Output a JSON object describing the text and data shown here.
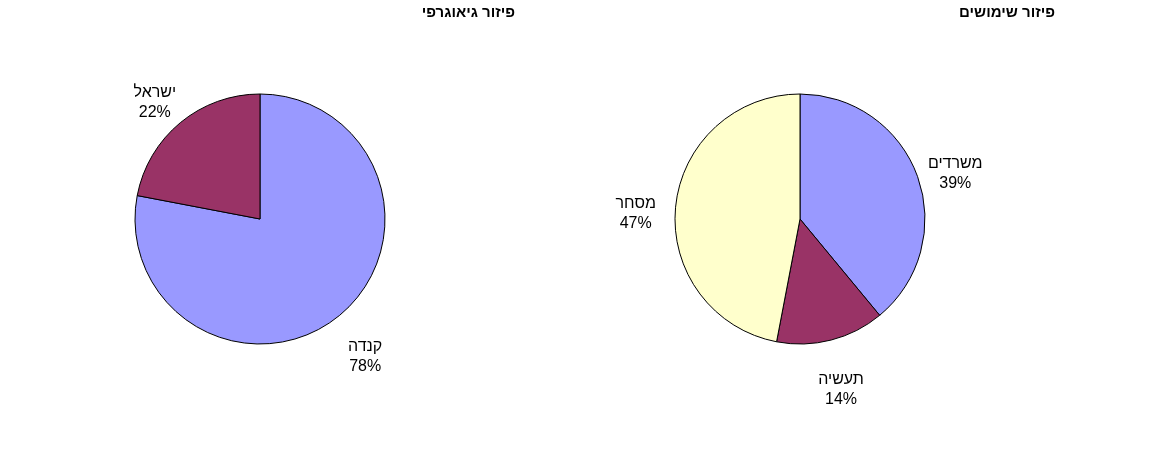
{
  "chart_data": [
    {
      "type": "pie",
      "title": "פיזור שימושים",
      "categories": [
        "משרדים",
        "תעשיה",
        "מסחר"
      ],
      "values": [
        39,
        14,
        47
      ],
      "colors": [
        "#9999ff",
        "#993366",
        "#ffffcc"
      ],
      "value_labels": [
        "39%",
        "14%",
        "47%"
      ],
      "legend": false
    },
    {
      "type": "pie",
      "title": "פיזור גיאוגרפי",
      "categories": [
        "קנדה",
        "ישראל"
      ],
      "values": [
        78,
        22
      ],
      "colors": [
        "#9999ff",
        "#993366"
      ],
      "value_labels": [
        "78%",
        "22%"
      ],
      "legend": false
    }
  ]
}
